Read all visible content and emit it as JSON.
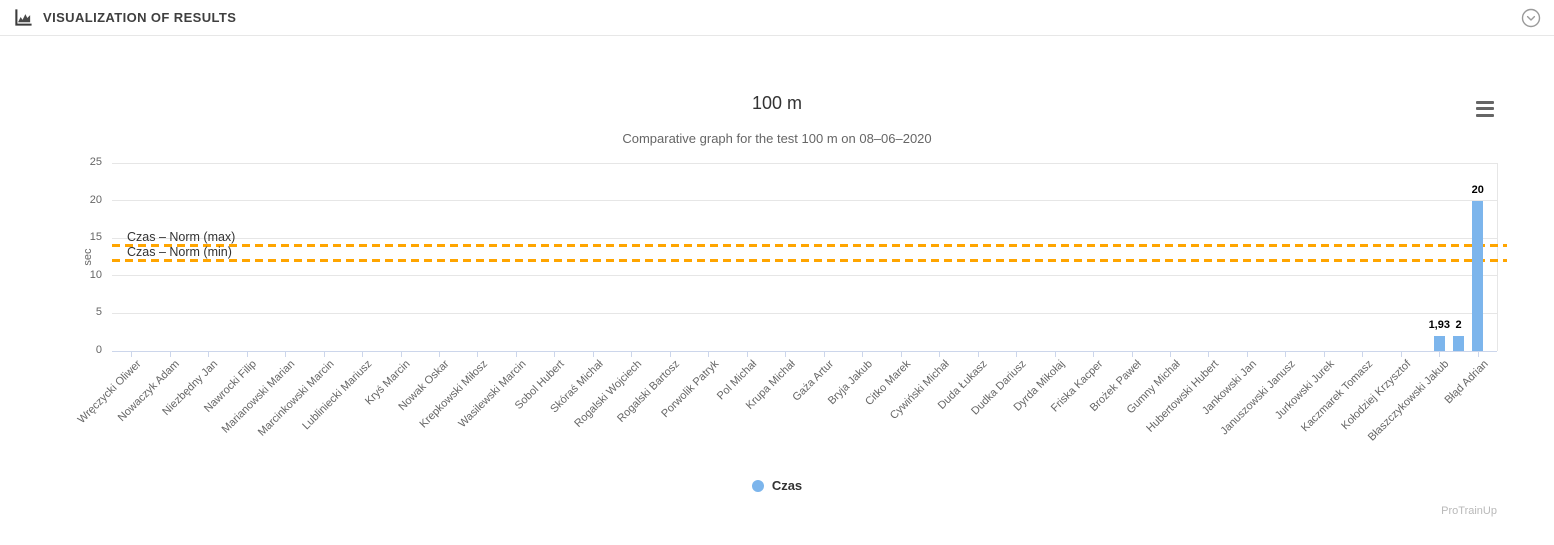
{
  "header": {
    "title": "VISUALIZATION OF RESULTS"
  },
  "chart_data": {
    "type": "bar",
    "title": "100 m",
    "subtitle": "Comparative graph for the test 100 m on 08–06–2020",
    "ylabel": "sec",
    "ylim": [
      0,
      25
    ],
    "yticks": [
      0,
      5,
      10,
      15,
      20,
      25
    ],
    "grid": true,
    "legend_position": "bottom-center",
    "categories": [
      "Wręczycki Oliwer",
      "Nowaczyk Adam",
      "Niezbędny Jan",
      "Nawrocki Filip",
      "Marianowski Marian",
      "Marcinkowski Marcin",
      "Lubliniecki Mariusz",
      "Kryś Marcin",
      "Nowak Oskar",
      "Krepkowski Miłosz",
      "Wasilewski Marcin",
      "Sobol Hubert",
      "Skóraś Michał",
      "Rogalski Wojciech",
      "Rogalski Bartosz",
      "Porwolik Patryk",
      "Pol Michał",
      "Krupa Michał",
      "Gaża Artur",
      "Bryja Jakub",
      "Citko Marek",
      "Cywiński Michał",
      "Duda Łukasz",
      "Dudka Dariusz",
      "Dyrda Mikołaj",
      "Friska Kacper",
      "Brożek Paweł",
      "Gumny Michał",
      "Hubertowski Hubert",
      "Jankowski Jan",
      "Januszowski Janusz",
      "Jurkowski Jurek",
      "Kaczmarek Tomasz",
      "Kołodziej Krzysztof",
      "Błaszczykowski Jakub",
      "Błąd Adrian"
    ],
    "series": [
      {
        "name": "Czas",
        "color": "#7cb5ec",
        "bars": [
          {
            "pos": 34,
            "category": "Błaszczykowski Jakub",
            "value": 1.93,
            "label": "1,93"
          },
          {
            "pos": 34.5,
            "category": null,
            "value": 2,
            "label": "2"
          },
          {
            "pos": 35,
            "category": "Błąd Adrian",
            "value": 20,
            "label": "20"
          }
        ]
      }
    ],
    "norm_lines": [
      {
        "label": "Czas – Norm (max)",
        "value": 14,
        "color": "#ffa500",
        "style": "dashed"
      },
      {
        "label": "Czas – Norm (min)",
        "value": 12,
        "color": "#ffa500",
        "style": "dashed"
      }
    ],
    "legend": [
      {
        "label": "Czas",
        "color": "#7cb5ec"
      }
    ]
  },
  "watermark": "ProTrainUp"
}
